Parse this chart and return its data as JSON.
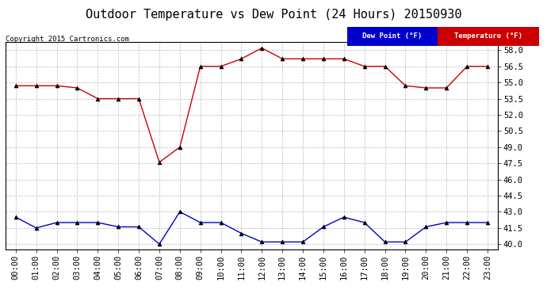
{
  "title": "Outdoor Temperature vs Dew Point (24 Hours) 20150930",
  "copyright": "Copyright 2015 Cartronics.com",
  "hours": [
    "00:00",
    "01:00",
    "02:00",
    "03:00",
    "04:00",
    "05:00",
    "06:00",
    "07:00",
    "08:00",
    "09:00",
    "10:00",
    "11:00",
    "12:00",
    "13:00",
    "14:00",
    "15:00",
    "16:00",
    "17:00",
    "18:00",
    "19:00",
    "20:00",
    "21:00",
    "22:00",
    "23:00"
  ],
  "temperature": [
    54.7,
    54.7,
    54.7,
    54.5,
    53.5,
    53.5,
    53.5,
    47.6,
    49.0,
    56.5,
    56.5,
    57.2,
    58.2,
    57.2,
    57.2,
    57.2,
    57.2,
    56.5,
    56.5,
    54.7,
    54.5,
    54.5,
    56.5,
    56.5
  ],
  "dew_point": [
    42.5,
    41.5,
    42.0,
    42.0,
    42.0,
    41.6,
    41.6,
    40.0,
    43.0,
    42.0,
    42.0,
    41.0,
    40.2,
    40.2,
    40.2,
    41.6,
    42.5,
    42.0,
    40.2,
    40.2,
    41.6,
    42.0,
    42.0,
    42.0
  ],
  "temp_color": "#cc0000",
  "dew_color": "#0000cc",
  "ylim_min": 39.5,
  "ylim_max": 58.8,
  "yticks": [
    40.0,
    41.5,
    43.0,
    44.5,
    46.0,
    47.5,
    49.0,
    50.5,
    52.0,
    53.5,
    55.0,
    56.5,
    58.0
  ],
  "bg_color": "#ffffff",
  "grid_color": "#bbbbbb",
  "legend_dew_bg": "#0000cc",
  "legend_temp_bg": "#cc0000",
  "legend_text_color": "#ffffff",
  "title_fontsize": 11,
  "tick_fontsize": 7.5,
  "copyright_fontsize": 6.5,
  "marker": "^",
  "markersize": 3.5,
  "linewidth": 1.0
}
